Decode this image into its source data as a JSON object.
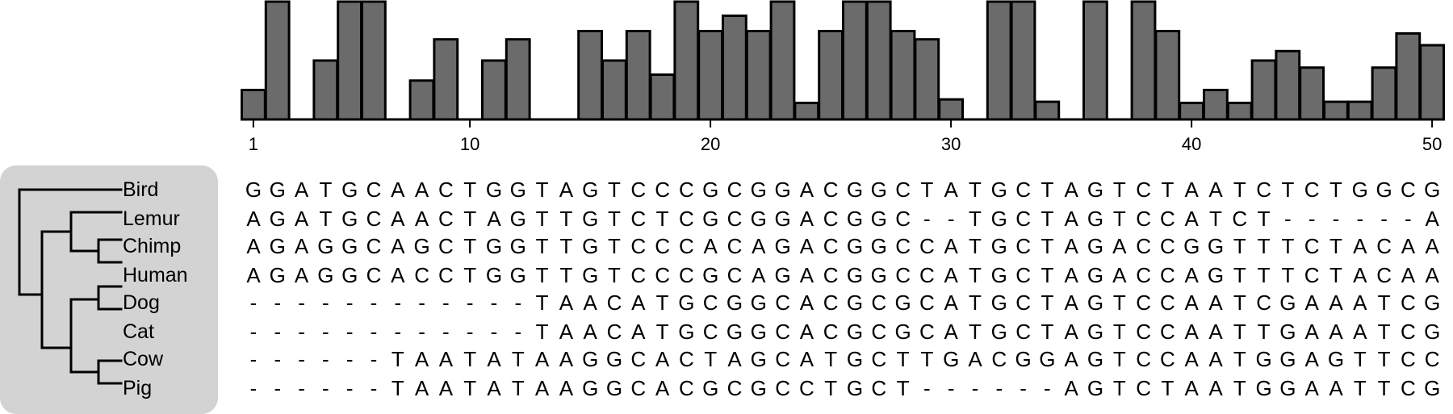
{
  "chart_data": {
    "type": "bar",
    "title": "",
    "xlabel": "",
    "ylabel": "",
    "x_ticks": [
      "1",
      "10",
      "20",
      "30",
      "40",
      "50"
    ],
    "positions": [
      1,
      2,
      3,
      4,
      5,
      6,
      7,
      8,
      9,
      10,
      11,
      12,
      13,
      14,
      15,
      16,
      17,
      18,
      19,
      20,
      21,
      22,
      23,
      24,
      25,
      26,
      27,
      28,
      29,
      30,
      31,
      32,
      33,
      34,
      35,
      36,
      37,
      38,
      39,
      40,
      41,
      42,
      43,
      44,
      45,
      46,
      47,
      48,
      49,
      50
    ],
    "values": [
      0.25,
      1.0,
      0,
      0.5,
      1.0,
      1.0,
      0,
      0.33,
      0.68,
      0,
      0.5,
      0.68,
      0,
      0,
      0.75,
      0.5,
      0.75,
      0.38,
      1.0,
      0.75,
      0.88,
      0.75,
      1.0,
      0.14,
      0.75,
      1.0,
      1.0,
      0.75,
      0.68,
      0.17,
      0,
      1.0,
      1.0,
      0.15,
      0,
      1.0,
      0,
      1.0,
      0.75,
      0.14,
      0.25,
      0.14,
      0.5,
      0.58,
      0.44,
      0.15,
      0.15,
      0.44,
      0.73,
      0.63
    ],
    "ylim": [
      0,
      1
    ]
  },
  "tree": {
    "species": [
      "Bird",
      "Lemur",
      "Chimp",
      "Human",
      "Dog",
      "Cat",
      "Cow",
      "Pig"
    ]
  },
  "alignment": {
    "rows": [
      "GGATGCAACTGGTAGTCCCGCGGACGGCTATGCTAGTCTAATCTCTGGCG",
      "AGATGCAACTAGTTGTCTCGCGGACGGC--TGCTAGTCCATCT------A",
      "AGAGGCAGCTGGTTGTCCCACAGACGGCCATGCTAGACCGGTTTCTACAA",
      "AGAGGCACCTGGTTGTCCCGCAGACGGCCATGCTAGACCAGTTTCTACAA",
      "------------TAACATGCGGCACGCGCATGCTAGTCCAATCGAAATCG",
      "------------TAACATGCGGCACGCGCATGCTAGTCCAATTGAAATCG",
      "------TAATATAAGGCACTAGCATGCTTGACGGAGTCCAATGGAGTTCC",
      "------TAATATAAGGCACGCGCCTGCT------AGTCTAATGGAATTCG"
    ]
  }
}
